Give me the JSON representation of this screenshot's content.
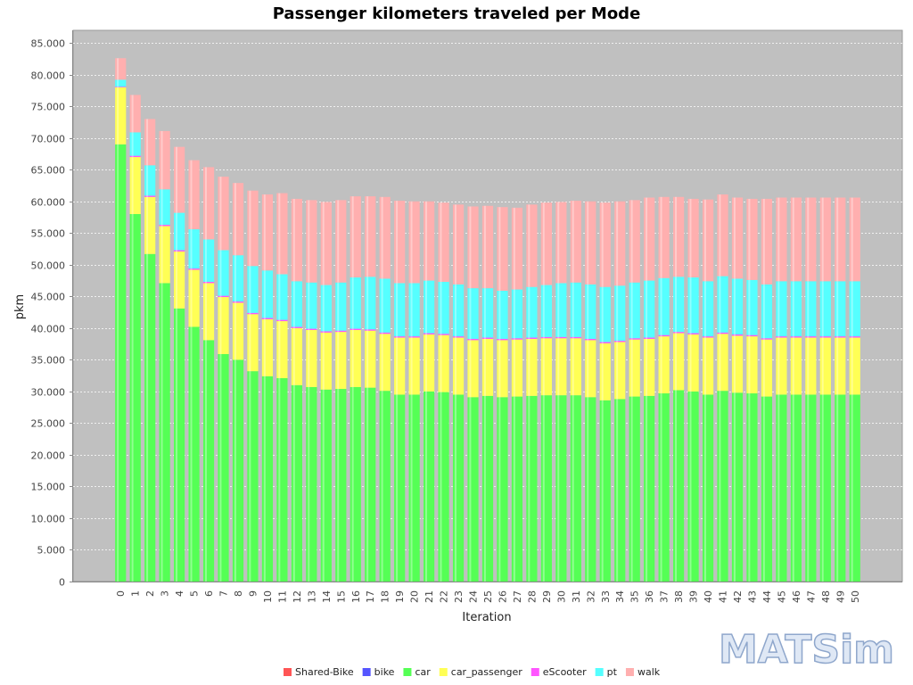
{
  "chart_data": {
    "type": "bar",
    "stacked": true,
    "title": "Passenger kilometers traveled per Mode",
    "xlabel": "Iteration",
    "ylabel": "pkm",
    "ylim": [
      0,
      87000
    ],
    "yticks": [
      0,
      5000,
      10000,
      15000,
      20000,
      25000,
      30000,
      35000,
      40000,
      45000,
      50000,
      55000,
      60000,
      65000,
      70000,
      75000,
      80000,
      85000
    ],
    "ytick_labels": [
      "0",
      "5.000",
      "10.000",
      "15.000",
      "20.000",
      "25.000",
      "30.000",
      "35.000",
      "40.000",
      "45.000",
      "50.000",
      "55.000",
      "60.000",
      "65.000",
      "70.000",
      "75.000",
      "80.000",
      "85.000"
    ],
    "grid": true,
    "legend_position": "bottom",
    "categories": [
      "0",
      "1",
      "2",
      "3",
      "4",
      "5",
      "6",
      "7",
      "8",
      "9",
      "10",
      "11",
      "12",
      "13",
      "14",
      "15",
      "16",
      "17",
      "18",
      "19",
      "20",
      "21",
      "22",
      "23",
      "24",
      "25",
      "26",
      "27",
      "28",
      "29",
      "30",
      "31",
      "32",
      "33",
      "34",
      "35",
      "36",
      "37",
      "38",
      "39",
      "40",
      "41",
      "42",
      "43",
      "44",
      "45",
      "46",
      "47",
      "48",
      "49",
      "50"
    ],
    "series": [
      {
        "name": "Shared-Bike",
        "color": "#ff5555",
        "values": [
          0,
          0,
          0,
          0,
          0,
          0,
          0,
          0,
          0,
          0,
          0,
          0,
          0,
          0,
          0,
          0,
          0,
          0,
          0,
          0,
          0,
          0,
          0,
          0,
          0,
          0,
          0,
          0,
          0,
          0,
          0,
          0,
          0,
          0,
          0,
          0,
          0,
          0,
          0,
          0,
          0,
          0,
          0,
          0,
          0,
          0,
          0,
          0,
          0,
          0,
          0
        ]
      },
      {
        "name": "bike",
        "color": "#5555ff",
        "values": [
          0,
          0,
          0,
          0,
          0,
          0,
          0,
          0,
          0,
          0,
          0,
          0,
          0,
          0,
          0,
          0,
          0,
          0,
          0,
          0,
          0,
          0,
          0,
          0,
          0,
          0,
          0,
          0,
          0,
          0,
          0,
          0,
          0,
          0,
          0,
          0,
          0,
          0,
          0,
          0,
          0,
          0,
          0,
          0,
          0,
          0,
          0,
          0,
          0,
          0,
          0
        ]
      },
      {
        "name": "car",
        "color": "#55ff55",
        "values": [
          69000,
          58000,
          51700,
          47100,
          43100,
          40200,
          38100,
          35900,
          35000,
          33200,
          32400,
          32100,
          31000,
          30700,
          30300,
          30400,
          30700,
          30600,
          30100,
          29500,
          29500,
          30000,
          29900,
          29500,
          29100,
          29300,
          29100,
          29200,
          29300,
          29400,
          29400,
          29400,
          29100,
          28600,
          28800,
          29200,
          29300,
          29700,
          30200,
          30000,
          29500,
          30100,
          29800,
          29700,
          29200,
          29500,
          29500,
          29500,
          29500,
          29500,
          29500
        ]
      },
      {
        "name": "car_passenger",
        "color": "#ffff55",
        "values": [
          9000,
          9000,
          9000,
          9000,
          9000,
          9000,
          9000,
          9000,
          9000,
          9000,
          9000,
          9000,
          9000,
          9000,
          9000,
          9000,
          9000,
          9000,
          9000,
          9000,
          9000,
          9000,
          9000,
          9000,
          9000,
          9000,
          9000,
          9000,
          9000,
          9000,
          9000,
          9000,
          9000,
          9000,
          9000,
          9000,
          9000,
          9000,
          9000,
          9000,
          9000,
          9000,
          9000,
          9000,
          9000,
          9000,
          9000,
          9000,
          9000,
          9000,
          9000
        ]
      },
      {
        "name": "eScooter",
        "color": "#ff55ff",
        "values": [
          100,
          200,
          200,
          200,
          200,
          200,
          200,
          200,
          200,
          200,
          200,
          200,
          200,
          200,
          200,
          200,
          200,
          200,
          200,
          200,
          200,
          200,
          200,
          200,
          200,
          200,
          200,
          200,
          200,
          200,
          200,
          200,
          200,
          200,
          200,
          200,
          200,
          200,
          200,
          200,
          200,
          200,
          200,
          200,
          200,
          200,
          200,
          200,
          200,
          200,
          200
        ]
      },
      {
        "name": "pt",
        "color": "#55ffff",
        "values": [
          1100,
          3700,
          4800,
          5600,
          5900,
          6200,
          6700,
          7200,
          7300,
          7400,
          7500,
          7200,
          7200,
          7300,
          7300,
          7600,
          8100,
          8300,
          8500,
          8400,
          8400,
          8300,
          8200,
          8200,
          8000,
          7800,
          7600,
          7700,
          8000,
          8200,
          8500,
          8600,
          8600,
          8700,
          8700,
          8800,
          9000,
          9000,
          8700,
          8800,
          8700,
          8900,
          8800,
          8700,
          8500,
          8700,
          8700,
          8700,
          8700,
          8700,
          8700
        ]
      },
      {
        "name": "walk",
        "color": "#ffafaf",
        "values": [
          3400,
          5900,
          7300,
          9200,
          10400,
          10900,
          11400,
          11600,
          11400,
          11900,
          12000,
          12800,
          13000,
          13000,
          13100,
          13000,
          12800,
          12700,
          12900,
          13000,
          12900,
          12500,
          12500,
          12600,
          12900,
          13000,
          13200,
          12900,
          13000,
          13000,
          12800,
          12900,
          13100,
          13300,
          13300,
          13000,
          13100,
          12800,
          12600,
          12400,
          12900,
          12900,
          12800,
          12800,
          13500,
          13200,
          13200,
          13200,
          13200,
          13200,
          13200
        ]
      }
    ]
  },
  "logo": {
    "text": "MATSim"
  }
}
